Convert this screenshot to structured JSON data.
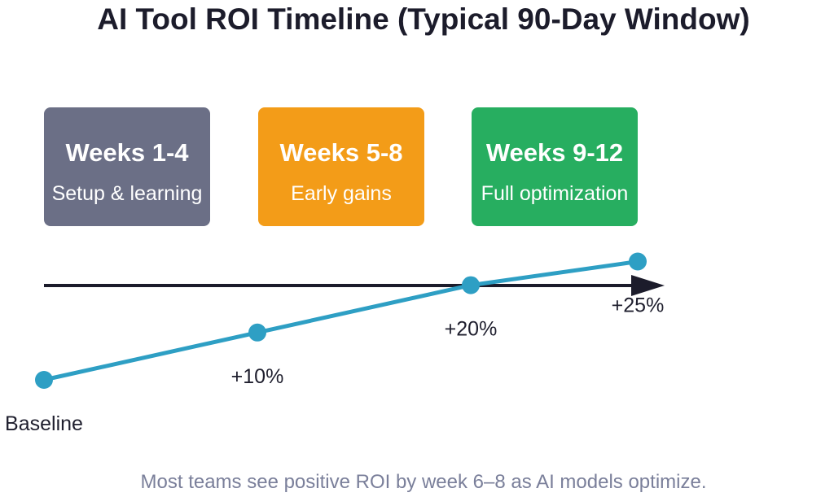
{
  "title": "AI Tool ROI Timeline (Typical 90-Day Window)",
  "phases": [
    {
      "title": "Weeks 1-4",
      "subtitle": "Setup & learning",
      "color": "#6b6f86"
    },
    {
      "title": "Weeks 5-8",
      "subtitle": "Early gains",
      "color": "#f39c18"
    },
    {
      "title": "Weeks 9-12",
      "subtitle": "Full optimization",
      "color": "#27ae60"
    }
  ],
  "chart_data": {
    "type": "line",
    "categories": [
      "Baseline",
      "+10%",
      "+20%",
      "+25%"
    ],
    "values": [
      0,
      10,
      20,
      25
    ],
    "line_color": "#2e9fc4",
    "axis_color": "#1c1c2b"
  },
  "footnote": "Most teams see positive ROI by week 6–8 as AI models optimize."
}
